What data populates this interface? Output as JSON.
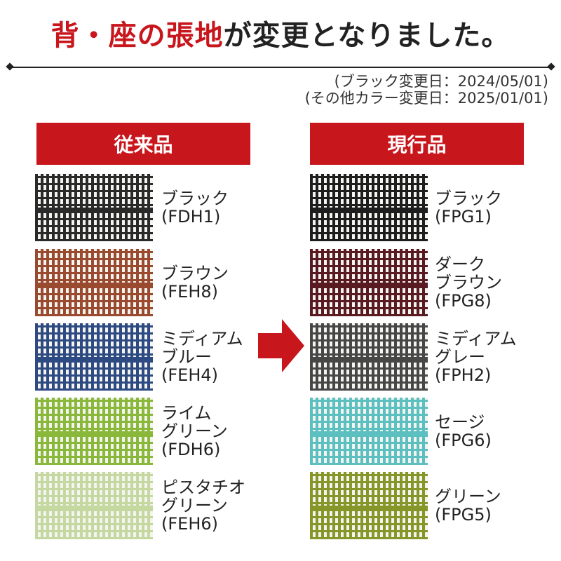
{
  "title": {
    "highlight": "背・座の張地",
    "rest": "が変更となりました。"
  },
  "dates": [
    "(ブラック変更日：2024/05/01)",
    "(その他カラー変更日：2025/01/01)"
  ],
  "old": {
    "header": "従来品",
    "items": [
      {
        "name": "ブラック",
        "code": "(FDH1)",
        "color": "#2a2a2a"
      },
      {
        "name": "ブラウン",
        "code": "(FEH8)",
        "color": "#9a4a2e"
      },
      {
        "name": "ミディアム\nブルー",
        "code": "(FEH4)",
        "color": "#2e4a82"
      },
      {
        "name": "ライム\nグリーン",
        "code": "(FDH6)",
        "color": "#8ab83a"
      },
      {
        "name": "ピスタチオ\nグリーン",
        "code": "(FEH6)",
        "color": "#c4d8a0"
      }
    ]
  },
  "new": {
    "header": "現行品",
    "items": [
      {
        "name": "ブラック",
        "code": "(FPG1)",
        "color": "#1e1e1e"
      },
      {
        "name": "ダーク\nブラウン",
        "code": "(FPG8)",
        "color": "#5a1a22"
      },
      {
        "name": "ミディアム\nグレー",
        "code": "(FPH2)",
        "color": "#474747"
      },
      {
        "name": "セージ",
        "code": "(FPG6)",
        "color": "#5cbfc0"
      },
      {
        "name": "グリーン",
        "code": "(FPG5)",
        "color": "#869628"
      }
    ]
  },
  "arrow_color": "#c8161d"
}
